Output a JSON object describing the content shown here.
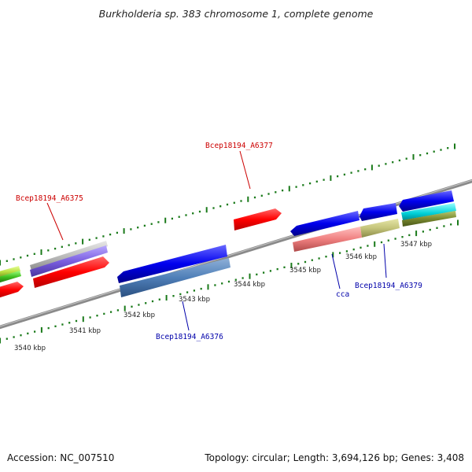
{
  "title": "Burkholderia sp. 383 chromosome 1, complete genome",
  "footer": {
    "accession": "Accession: NC_007510",
    "summary": "Topology: circular; Length: 3,694,126 bp; Genes: 3,408"
  },
  "ticks": [
    "3540 kbp",
    "3541 kbp",
    "3542 kbp",
    "3543 kbp",
    "3544 kbp",
    "3545 kbp",
    "3546 kbp",
    "3547 kbp"
  ],
  "gene_labels": {
    "a6375": "Bcep18194_A6375",
    "a6377": "Bcep18194_A6377",
    "a6376": "Bcep18194_A6376",
    "cca": "cca",
    "a6379": "Bcep18194_A6379"
  },
  "colors": {
    "forward_label": "#cc0000",
    "reverse_label": "#0000aa",
    "tick_green": "#1a7a1a",
    "backbone": "#808080"
  }
}
